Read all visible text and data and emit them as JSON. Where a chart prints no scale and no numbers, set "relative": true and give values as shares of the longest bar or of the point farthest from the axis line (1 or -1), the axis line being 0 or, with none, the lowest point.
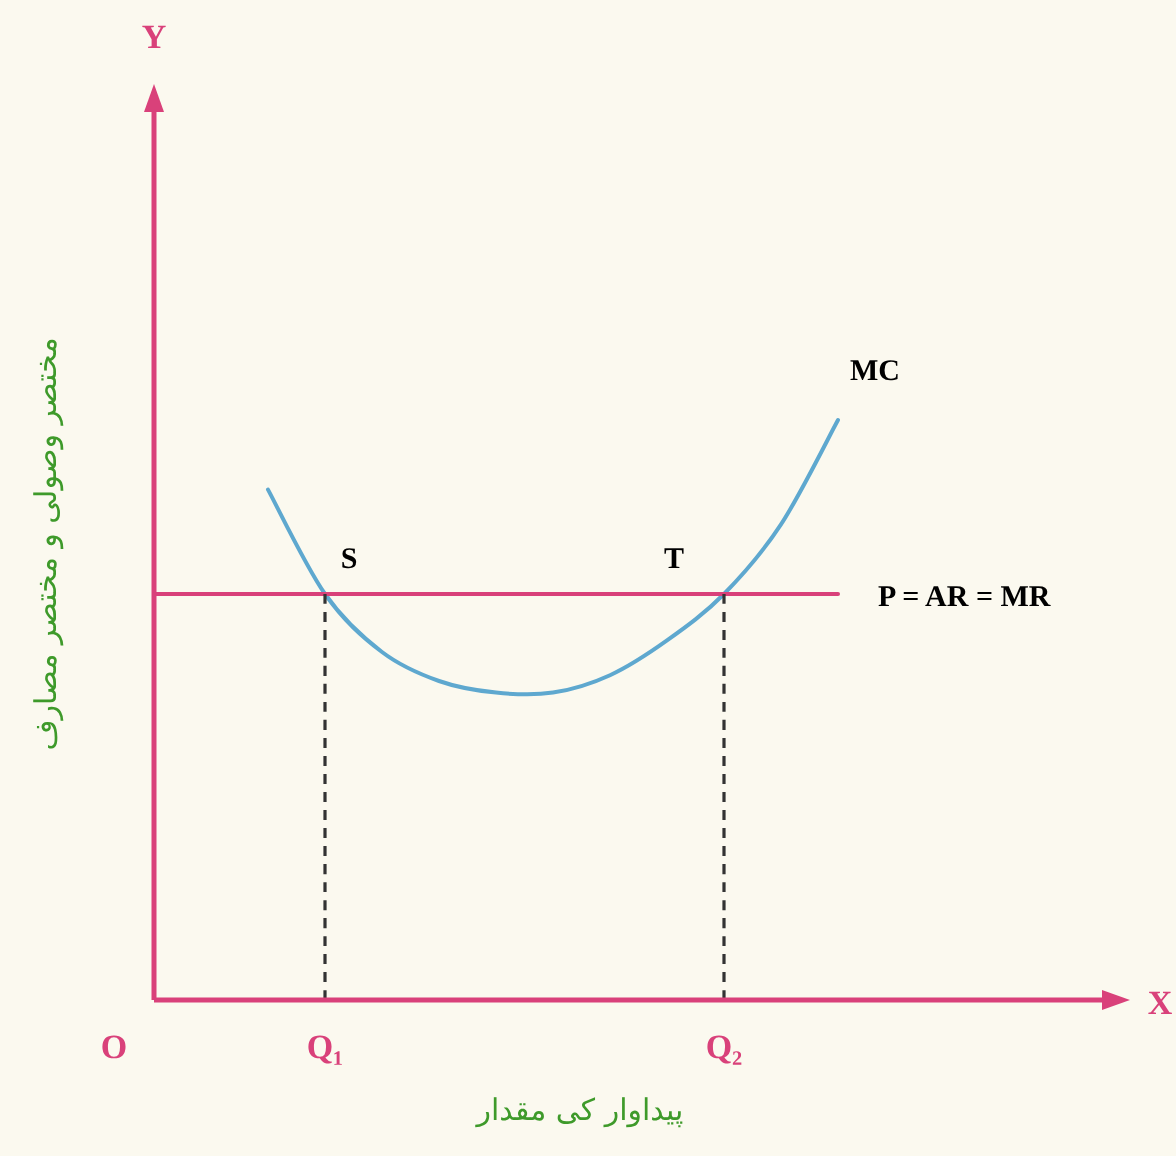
{
  "chart_data": {
    "type": "line",
    "relative": true,
    "xlabel": "پیداوار کی مقدار",
    "ylabel": "مختصر وصولی و مختصر مصارف",
    "categories": [
      null,
      null,
      null,
      "Q₁",
      null,
      null,
      null,
      null,
      null,
      null,
      "Q₂",
      null,
      null,
      null,
      null
    ],
    "series": [
      {
        "name": "MC",
        "color": "#5ea8cf",
        "values": [
          null,
          null,
          0.88,
          0.7,
          0.6,
          0.55,
          0.53,
          0.53,
          0.56,
          0.62,
          0.7,
          0.82,
          1.0,
          null,
          null
        ]
      },
      {
        "name": "P = AR = MR",
        "color": "#d9417a",
        "values": [
          0.7,
          0.7,
          0.7,
          0.7,
          0.7,
          0.7,
          0.7,
          0.7,
          0.7,
          0.7,
          0.7,
          0.7,
          0.7,
          null,
          null
        ]
      },
      {
        "color": "#333333",
        "line_style": "dashed",
        "x": [
          "Q₁",
          "Q₁"
        ],
        "values": [
          0,
          0.7
        ]
      },
      {
        "color": "#333333",
        "line_style": "dashed",
        "x": [
          "Q₂",
          "Q₂"
        ],
        "values": [
          0,
          0.7
        ]
      }
    ],
    "annotations": [
      {
        "text": "S",
        "x": "Q₁",
        "y": 0.7
      },
      {
        "text": "T",
        "x": "Q₂",
        "y": 0.7
      },
      "O",
      "Y",
      "X"
    ]
  }
}
